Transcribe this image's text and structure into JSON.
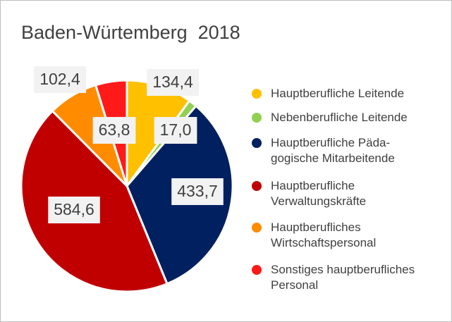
{
  "chart_data": {
    "type": "pie",
    "title": "Baden-Würtemberg  2018",
    "categories": [
      "Hauptberufliche Leitende",
      "Nebenberufliche Leitende",
      "Hauptberufliche Päda-\ngogische Mitarbeitende",
      "Hauptberufliche\nVerwaltungskräfte",
      "Hauptberufliches\nWirtschaftspersonal",
      "Sonstiges hauptberufliches\nPersonal"
    ],
    "values": [
      134.4,
      17.0,
      433.7,
      584.6,
      102.4,
      63.8
    ],
    "value_labels": [
      "134,4",
      "17,0",
      "433,7",
      "584,6",
      "102,4",
      "63,8"
    ],
    "colors": [
      "#ffc000",
      "#92d050",
      "#002060",
      "#c00000",
      "#ff8c00",
      "#ff1a1a"
    ],
    "legend": "right"
  }
}
